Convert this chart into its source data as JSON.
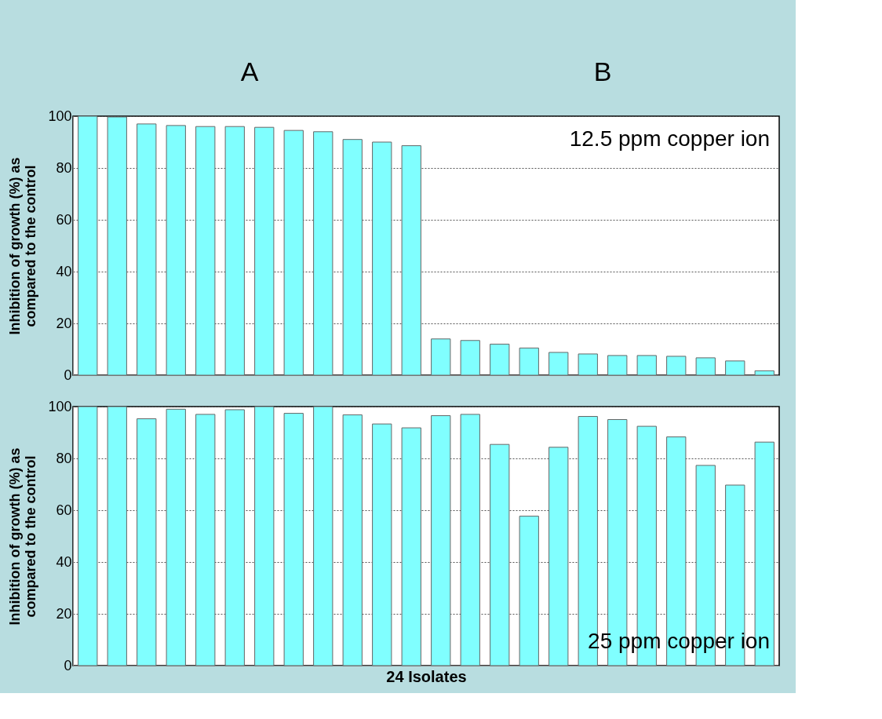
{
  "chart_data": [
    {
      "type": "bar",
      "ylabel": "Inhibition of growth (%) as\ncompared to the control",
      "categories": [
        null,
        null,
        null,
        null,
        null,
        null,
        null,
        null,
        null,
        null,
        null,
        null,
        null,
        null,
        null,
        null,
        null,
        null,
        null,
        null,
        null,
        null,
        null,
        null
      ],
      "values": [
        100,
        99.7,
        97,
        96.4,
        96,
        96,
        95.7,
        94.5,
        94,
        91,
        90,
        88.6,
        14,
        13.4,
        12,
        10.5,
        8.8,
        8.2,
        7.6,
        7.6,
        7.3,
        6.7,
        5.5,
        1.7
      ],
      "color": "#80ffff",
      "ylim": [
        0,
        100
      ],
      "yticks": [
        0,
        20,
        40,
        60,
        80,
        100
      ],
      "grid": "y",
      "annotations": [
        "A",
        "B",
        "12.5 ppm copper ion"
      ]
    },
    {
      "type": "bar",
      "ylabel": "Inhibition of growth (%) as\ncompared to the control",
      "xlabel": "24 Isolates",
      "categories": [
        null,
        null,
        null,
        null,
        null,
        null,
        null,
        null,
        null,
        null,
        null,
        null,
        null,
        null,
        null,
        null,
        null,
        null,
        null,
        null,
        null,
        null,
        null,
        null
      ],
      "values": [
        100,
        100,
        95.3,
        99,
        97,
        98.8,
        100,
        97.4,
        100,
        96.8,
        93.3,
        91.8,
        96.5,
        97,
        85.4,
        57.7,
        84.3,
        96.2,
        95,
        92.4,
        88.3,
        77.3,
        69.7,
        86.3
      ],
      "color": "#80ffff",
      "ylim": [
        0,
        100
      ],
      "yticks": [
        0,
        20,
        40,
        60,
        80,
        100
      ],
      "grid": "y",
      "annotations": [
        "25 ppm copper ion"
      ]
    }
  ]
}
